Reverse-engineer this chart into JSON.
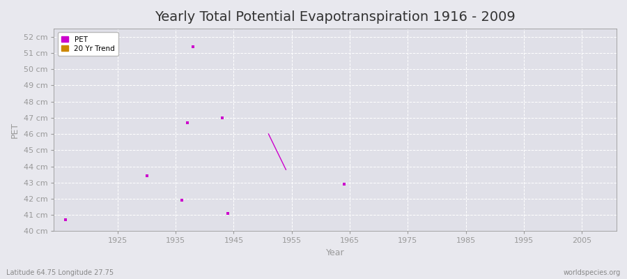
{
  "title": "Yearly Total Potential Evapotranspiration 1916 - 2009",
  "xlabel": "Year",
  "ylabel": "PET",
  "xlim": [
    1914,
    2011
  ],
  "ylim": [
    40,
    52.5
  ],
  "yticks": [
    40,
    41,
    42,
    43,
    44,
    45,
    46,
    47,
    48,
    49,
    50,
    51,
    52
  ],
  "ytick_labels": [
    "40 cm",
    "41 cm",
    "42 cm",
    "43 cm",
    "44 cm",
    "45 cm",
    "46 cm",
    "47 cm",
    "48 cm",
    "49 cm",
    "50 cm",
    "51 cm",
    "52 cm"
  ],
  "xticks": [
    1925,
    1935,
    1945,
    1955,
    1965,
    1975,
    1985,
    1995,
    2005
  ],
  "pet_data": [
    [
      1916,
      40.7
    ],
    [
      1930,
      43.4
    ],
    [
      1936,
      41.9
    ],
    [
      1937,
      46.7
    ],
    [
      1938,
      51.4
    ],
    [
      1943,
      47.0
    ],
    [
      1944,
      41.1
    ],
    [
      1964,
      42.9
    ]
  ],
  "trend_data": [
    [
      1951,
      46.0
    ],
    [
      1954,
      43.8
    ]
  ],
  "pet_color": "#cc00cc",
  "trend_color": "#cc8800",
  "fig_background_color": "#e8e8ee",
  "plot_background_color": "#e0e0e8",
  "grid_color": "#ffffff",
  "tick_color": "#999999",
  "spine_color": "#999999",
  "subtitle": "Latitude 64.75 Longitude 27.75",
  "watermark": "worldspecies.org",
  "title_fontsize": 14,
  "axis_fontsize": 8,
  "label_fontsize": 9,
  "footer_fontsize": 7
}
